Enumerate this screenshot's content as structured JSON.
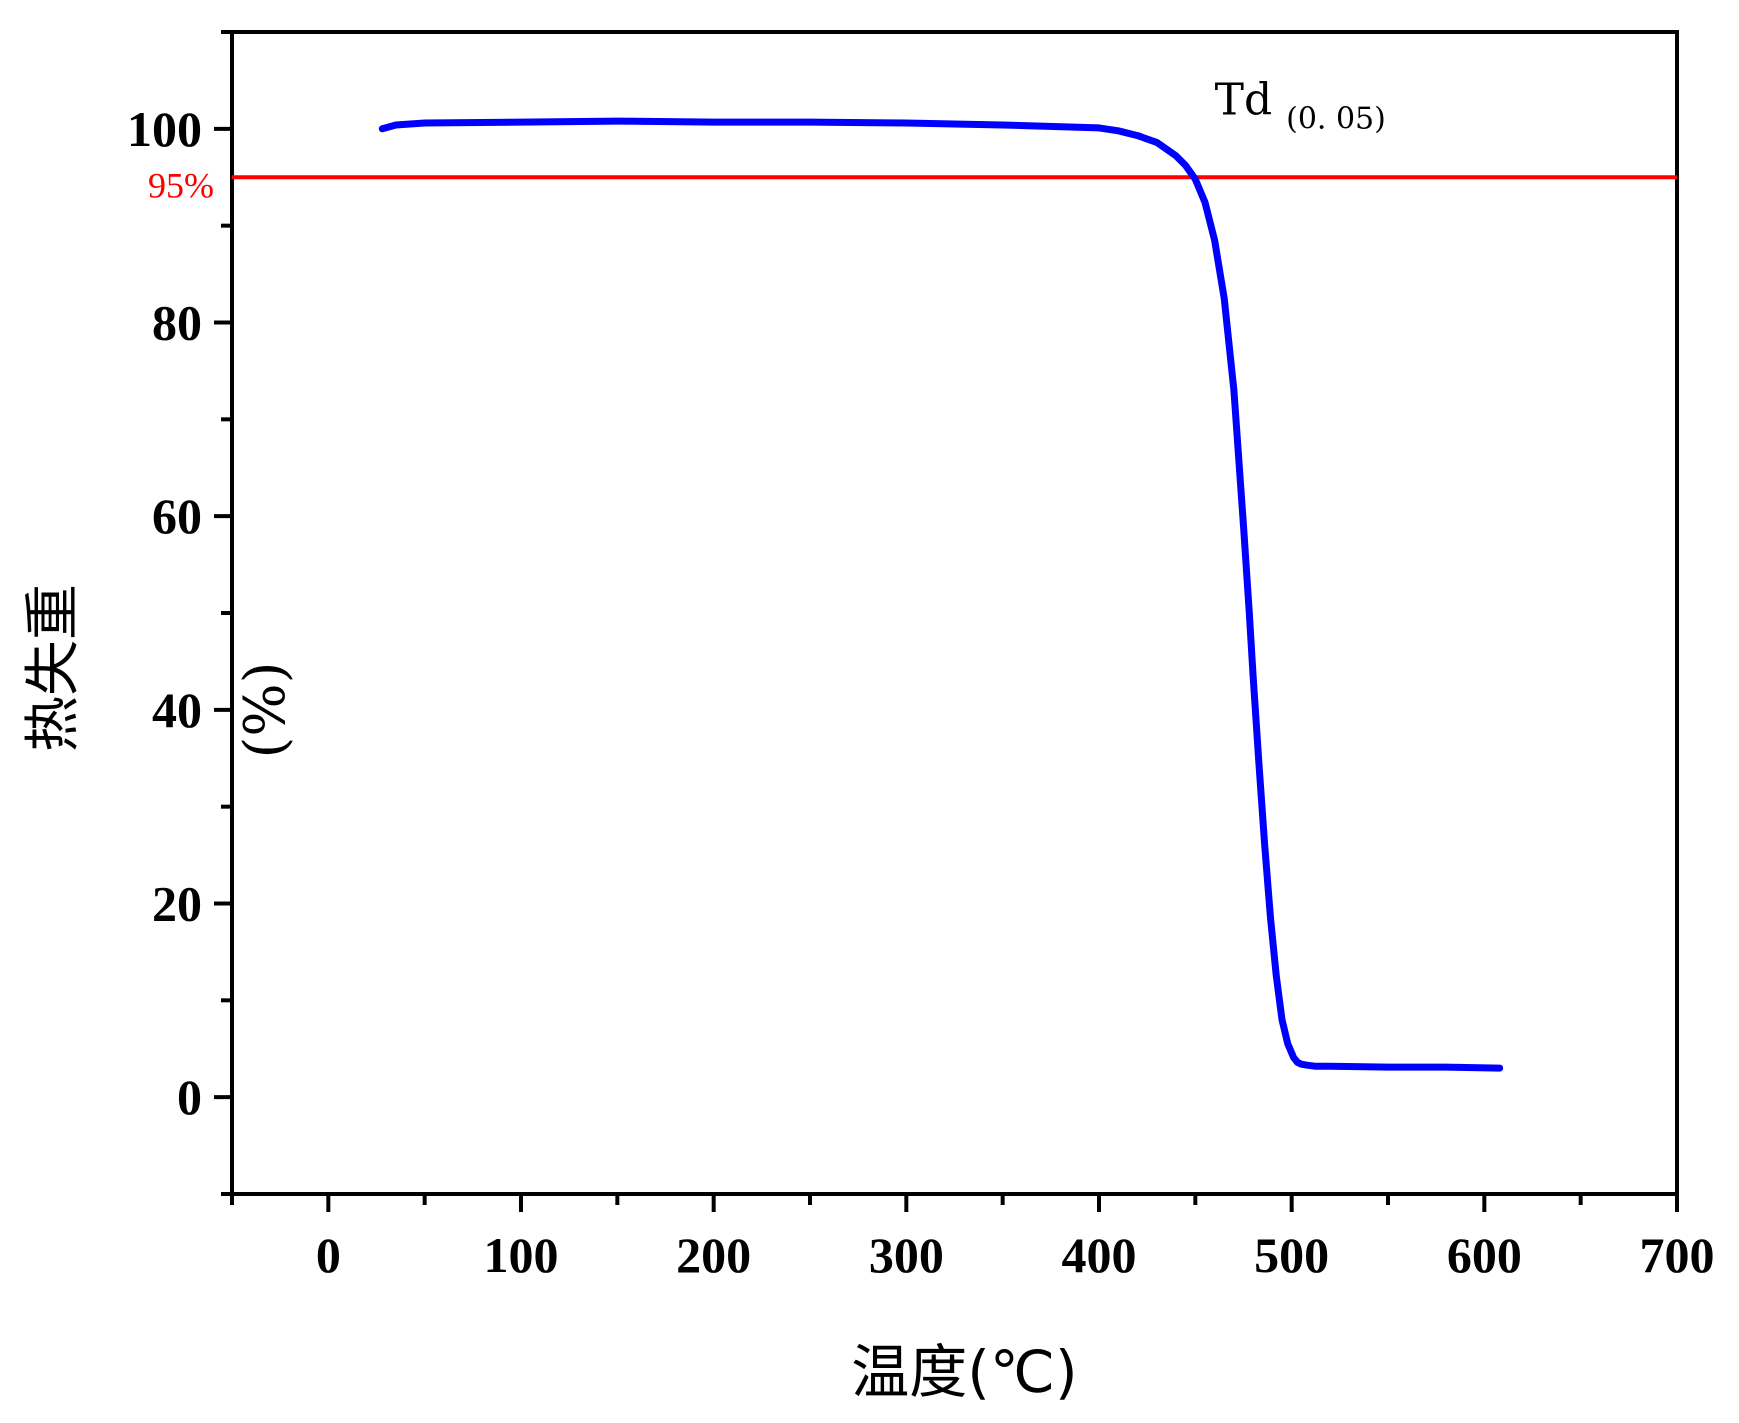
{
  "chart_data": {
    "type": "line",
    "xlabel": "温度(℃)",
    "ylabel_main": "热失重",
    "ylabel_unit": "(%)",
    "xlim": [
      -50,
      700
    ],
    "ylim": [
      -10,
      110
    ],
    "x_ticks": [
      0,
      100,
      200,
      300,
      400,
      500,
      600,
      700
    ],
    "y_ticks": [
      0,
      20,
      40,
      60,
      80,
      100
    ],
    "grid": false,
    "colors": {
      "series": "#0000ff",
      "reference": "#ff0000",
      "axis": "#000000"
    },
    "reference_line": {
      "y": 95,
      "label": "95%"
    },
    "annotation": {
      "text": "Td",
      "subscript": "(0. 05)"
    },
    "series": [
      {
        "x": [
          28,
          35,
          50,
          100,
          150,
          200,
          250,
          300,
          350,
          400,
          410,
          420,
          430,
          440,
          445,
          450,
          455,
          460,
          465,
          470,
          475,
          478,
          480,
          483,
          486,
          489,
          492,
          495,
          498,
          501,
          503,
          505,
          508,
          512,
          520,
          550,
          580,
          608
        ],
        "y": [
          100.0,
          100.4,
          100.6,
          100.7,
          100.8,
          100.7,
          100.7,
          100.6,
          100.4,
          100.1,
          99.8,
          99.3,
          98.6,
          97.2,
          96.2,
          94.8,
          92.4,
          88.5,
          82.5,
          73.0,
          59.0,
          50.0,
          43.5,
          34.5,
          26.0,
          18.5,
          12.5,
          8.0,
          5.5,
          4.1,
          3.6,
          3.4,
          3.3,
          3.2,
          3.2,
          3.1,
          3.1,
          3.0
        ]
      }
    ]
  }
}
